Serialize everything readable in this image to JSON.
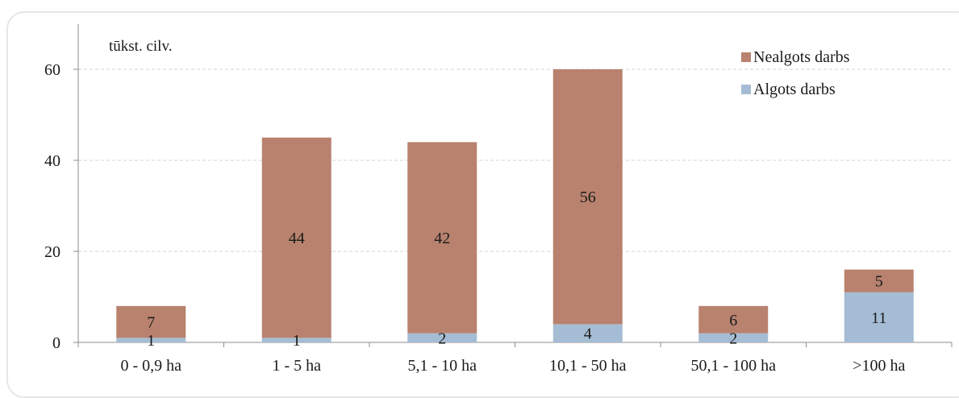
{
  "chart_data": {
    "type": "bar",
    "stacked": true,
    "unit_label": "tūkst. cilv.",
    "categories": [
      "0 - 0,9 ha",
      "1 - 5 ha",
      "5,1 - 10 ha",
      "10,1 - 50 ha",
      "50,1 - 100 ha",
      ">100 ha"
    ],
    "series": [
      {
        "name": "Algots darbs",
        "values": [
          1,
          1,
          2,
          4,
          2,
          11
        ],
        "labels": [
          "1",
          "1",
          "2",
          "4",
          "2",
          "11"
        ],
        "color": "#a5bdd4"
      },
      {
        "name": "Nealgots darbs",
        "values": [
          7,
          44,
          42,
          56,
          6,
          5
        ],
        "labels": [
          "7",
          "44",
          "42",
          "56",
          "6",
          "5"
        ],
        "color": "#b8826e"
      }
    ],
    "ylim": [
      0,
      70
    ],
    "yticks": [
      "0",
      "20",
      "40",
      "60"
    ],
    "grid": true,
    "legend_position": "top-right"
  }
}
